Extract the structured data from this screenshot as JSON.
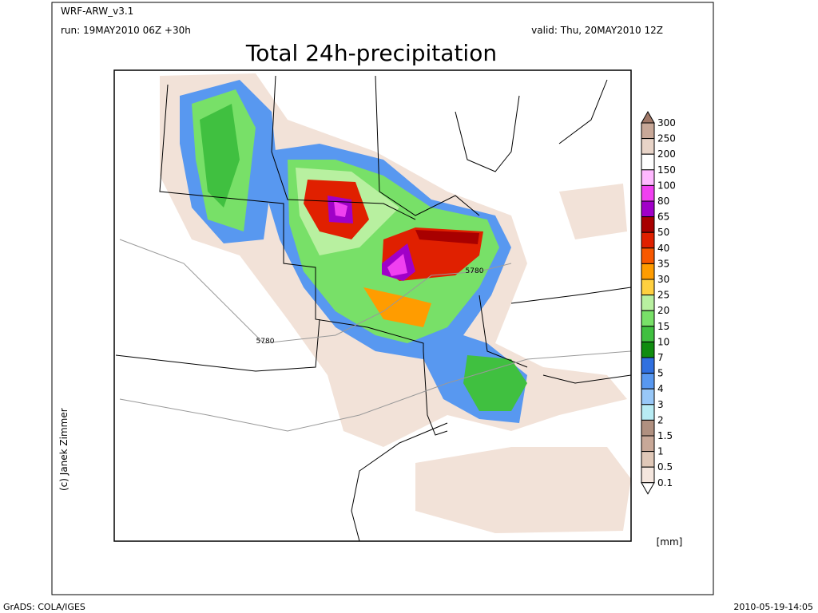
{
  "header": {
    "model": "WRF-ARW_v3.1",
    "run": "run: 19MAY2010 06Z +30h",
    "valid": "valid: Thu, 20MAY2010 12Z",
    "title": "Total 24h-precipitation"
  },
  "map": {
    "contour_labels": [
      "5780",
      "5780"
    ],
    "credit": "(c) Janek Zimmer"
  },
  "legend": {
    "unit": "[mm]",
    "levels": [
      300,
      250,
      200,
      150,
      100,
      80,
      65,
      50,
      40,
      35,
      30,
      25,
      20,
      15,
      10,
      7,
      5,
      4,
      3,
      2,
      1.5,
      1,
      0.5,
      0.1
    ],
    "colors": [
      "#a07868",
      "#c8a898",
      "#e8d4c8",
      "#ffffff",
      "#ffb8ff",
      "#f040f0",
      "#a000c8",
      "#a80000",
      "#e02000",
      "#f85800",
      "#ff9c00",
      "#ffd040",
      "#b8f0a0",
      "#78e068",
      "#40c040",
      "#108c10",
      "#3070e0",
      "#5898f0",
      "#98c8f8",
      "#b8ecf4",
      "#b09080",
      "#c8a898",
      "#e0c8b8",
      "#f4e6de",
      "#ffffff"
    ]
  },
  "footer": {
    "left": "GrADS: COLA/IGES",
    "right": "2010-05-19-14:05"
  }
}
